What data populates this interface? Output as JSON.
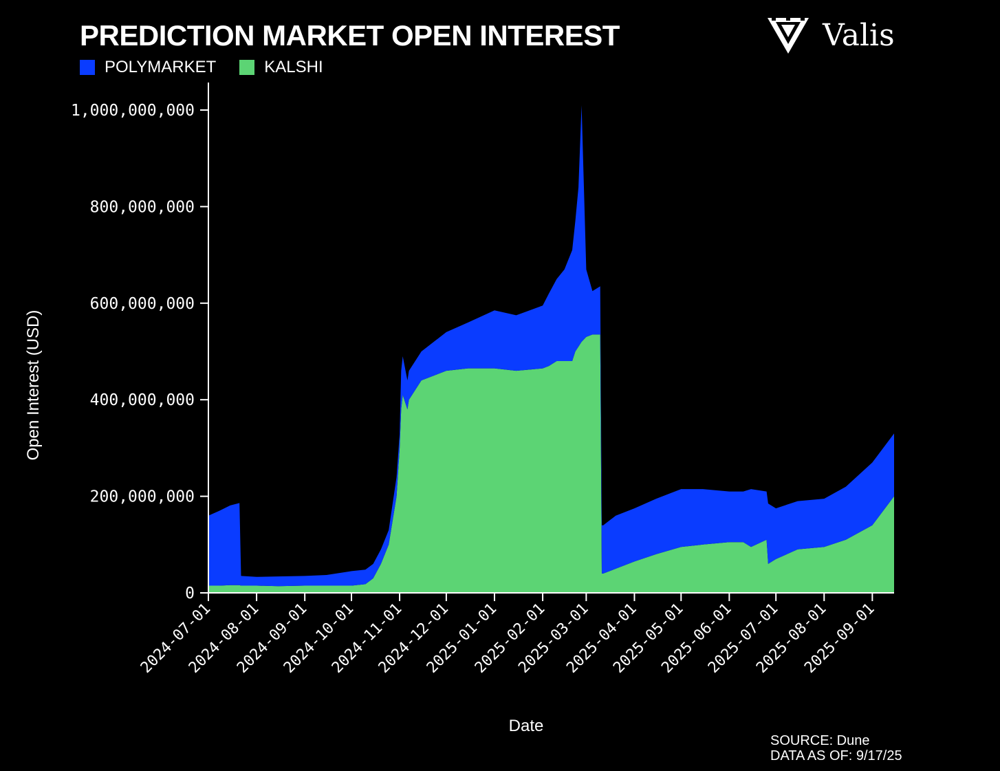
{
  "title": "PREDICTION MARKET OPEN INTEREST",
  "brand": "Valis",
  "legend": [
    {
      "name": "POLYMARKET",
      "color": "#0a3cff"
    },
    {
      "name": "KALSHI",
      "color": "#5cd474"
    }
  ],
  "source_line": "SOURCE: Dune",
  "data_as_of_line": "DATA AS OF: 9/17/25",
  "chart_data": {
    "type": "area",
    "stacked": true,
    "xlabel": "Date",
    "ylabel": "Open Interest (USD)",
    "ylim": [
      0,
      1000000000
    ],
    "xlim": [
      "2024-07-01",
      "2025-09-15"
    ],
    "yticks": [
      0,
      200000000,
      400000000,
      600000000,
      800000000,
      1000000000
    ],
    "ytick_labels": [
      "0",
      "200,000,000",
      "400,000,000",
      "600,000,000",
      "800,000,000",
      "1,000,000,000"
    ],
    "xtick_labels": [
      "2024-07-01",
      "2024-08-01",
      "2024-09-01",
      "2024-10-01",
      "2024-11-01",
      "2024-12-01",
      "2025-01-01",
      "2025-02-01",
      "2025-03-01",
      "2025-04-01",
      "2025-05-01",
      "2025-06-01",
      "2025-07-01",
      "2025-08-01",
      "2025-09-01"
    ],
    "x": [
      "2024-07-01",
      "2024-07-08",
      "2024-07-15",
      "2024-07-21",
      "2024-07-22",
      "2024-08-01",
      "2024-08-15",
      "2024-09-01",
      "2024-09-15",
      "2024-10-01",
      "2024-10-10",
      "2024-10-15",
      "2024-10-20",
      "2024-10-25",
      "2024-10-30",
      "2024-11-01",
      "2024-11-02",
      "2024-11-03",
      "2024-11-06",
      "2024-11-07",
      "2024-11-15",
      "2024-12-01",
      "2024-12-15",
      "2025-01-01",
      "2025-01-15",
      "2025-02-01",
      "2025-02-05",
      "2025-02-10",
      "2025-02-15",
      "2025-02-20",
      "2025-02-22",
      "2025-02-24",
      "2025-02-26",
      "2025-03-01",
      "2025-03-05",
      "2025-03-10",
      "2025-03-11",
      "2025-03-12",
      "2025-03-20",
      "2025-04-01",
      "2025-04-15",
      "2025-05-01",
      "2025-05-15",
      "2025-06-01",
      "2025-06-10",
      "2025-06-15",
      "2025-06-25",
      "2025-06-26",
      "2025-07-01",
      "2025-07-15",
      "2025-08-01",
      "2025-08-15",
      "2025-09-01",
      "2025-09-15"
    ],
    "series": [
      {
        "name": "KALSHI",
        "color": "#5cd474",
        "values": [
          15,
          15,
          16,
          16,
          15,
          15,
          14,
          15,
          15,
          15,
          18,
          30,
          60,
          100,
          200,
          300,
          380,
          410,
          380,
          400,
          440,
          460,
          465,
          465,
          460,
          465,
          470,
          480,
          480,
          480,
          500,
          510,
          520,
          530,
          535,
          535,
          40,
          40,
          50,
          65,
          80,
          95,
          100,
          105,
          105,
          95,
          110,
          60,
          70,
          90,
          95,
          110,
          140,
          200
        ]
      },
      {
        "name": "POLYMARKET",
        "color": "#0a3cff",
        "values": [
          145,
          155,
          165,
          170,
          20,
          18,
          20,
          20,
          22,
          30,
          30,
          30,
          30,
          30,
          40,
          30,
          80,
          80,
          60,
          60,
          60,
          80,
          95,
          120,
          115,
          130,
          150,
          170,
          190,
          230,
          270,
          330,
          490,
          140,
          90,
          100,
          100,
          100,
          110,
          110,
          115,
          120,
          115,
          105,
          105,
          120,
          100,
          125,
          105,
          100,
          100,
          110,
          130,
          130
        ]
      }
    ]
  }
}
